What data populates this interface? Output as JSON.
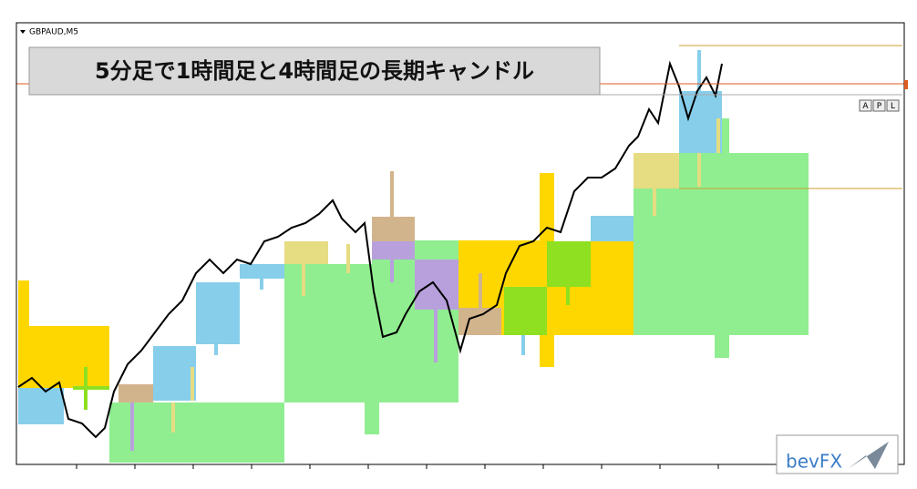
{
  "window": {
    "symbol": "GBPAUD,M5",
    "banner": "5分足で1時間足と4時間足の長期キャンドル",
    "buttons": [
      "A",
      "P",
      "L"
    ],
    "logo": "bevFX"
  }
}
